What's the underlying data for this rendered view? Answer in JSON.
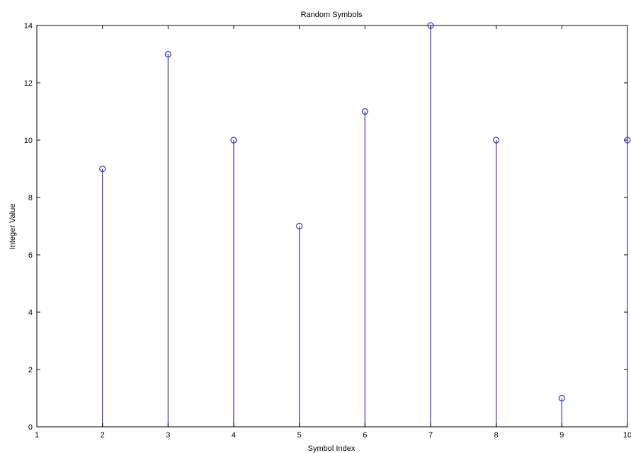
{
  "chart_data": {
    "type": "stem",
    "title": "Random Symbols",
    "xlabel": "Symbol Index",
    "ylabel": "Integer Value",
    "xlim": [
      1,
      10
    ],
    "ylim": [
      0,
      14
    ],
    "xticks": [
      1,
      2,
      3,
      4,
      5,
      6,
      7,
      8,
      9,
      10
    ],
    "yticks": [
      0,
      2,
      4,
      6,
      8,
      10,
      12,
      14
    ],
    "x": [
      2,
      3,
      4,
      5,
      6,
      7,
      8,
      9,
      10
    ],
    "y": [
      9,
      13,
      10,
      7,
      11,
      14,
      10,
      1,
      10
    ],
    "grid": false,
    "marker": "circle",
    "color": "#3333cc",
    "axis_color": "#000000"
  }
}
